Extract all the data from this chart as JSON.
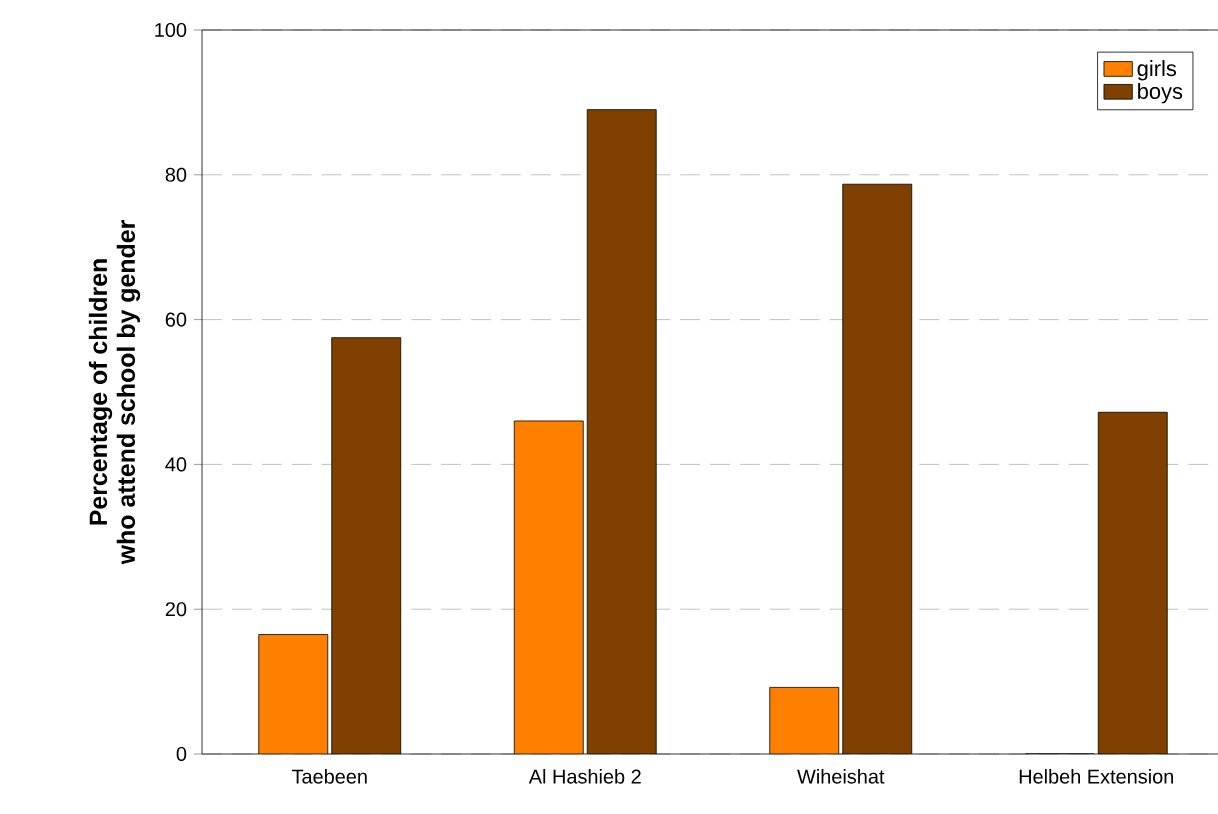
{
  "chart_data": {
    "type": "bar",
    "ylabel": "Percentage of children\nwho attend school by gender",
    "categories": [
      "Taebeen",
      "Al Hashieb 2",
      "Wiheishat",
      "Helbeh Extension"
    ],
    "series": [
      {
        "name": "girls",
        "color": "#ff8000",
        "values": [
          16.5,
          46,
          9.2,
          0
        ]
      },
      {
        "name": "boys",
        "color": "#804000",
        "values": [
          57.5,
          89,
          78.7,
          47.2
        ]
      }
    ],
    "ylim": [
      0,
      100
    ],
    "yticks": [
      0,
      20,
      40,
      60,
      80,
      100
    ],
    "grid": "y",
    "legend": "top right"
  }
}
